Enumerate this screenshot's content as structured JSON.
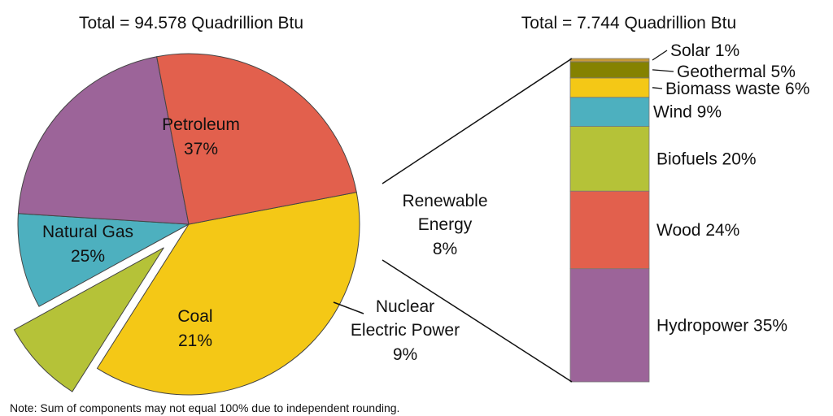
{
  "note": "Note: Sum of components may not equal 100% due to independent rounding.",
  "chart_data": [
    {
      "type": "pie",
      "title": "Total = 94.578 Quadrillion Btu",
      "slices": [
        {
          "name": "Petroleum",
          "value": 37,
          "label": "37%",
          "color": "#f4c816"
        },
        {
          "name": "Renewable Energy",
          "value": 8,
          "label": "8%",
          "color": "#b5c238",
          "exploded": true
        },
        {
          "name": "Nuclear Electric Power",
          "value": 9,
          "label": "9%",
          "color": "#4db0bf"
        },
        {
          "name": "Coal",
          "value": 21,
          "label": "21%",
          "color": "#9c6499"
        },
        {
          "name": "Natural Gas",
          "value": 25,
          "label": "25%",
          "color": "#e2604d"
        }
      ],
      "text": {
        "petroleum": "Petroleum",
        "petroleum_pct": "37%",
        "natural_gas": "Natural Gas",
        "natural_gas_pct": "25%",
        "coal": "Coal",
        "coal_pct": "21%",
        "renewable_1": "Renewable",
        "renewable_2": "Energy",
        "renewable_pct": "8%",
        "nuclear_1": "Nuclear",
        "nuclear_2": "Electric Power",
        "nuclear_pct": "9%"
      }
    },
    {
      "type": "bar",
      "stacked": true,
      "title": "Total = 7.744 Quadrillion Btu",
      "segments": [
        {
          "name": "Hydropower",
          "value": 35,
          "label": "Hydropower 35%",
          "color": "#9c6499"
        },
        {
          "name": "Wood",
          "value": 24,
          "label": "Wood 24%",
          "color": "#e2604d"
        },
        {
          "name": "Biofuels",
          "value": 20,
          "label": "Biofuels 20%",
          "color": "#b5c238"
        },
        {
          "name": "Wind",
          "value": 9,
          "label": "Wind 9%",
          "color": "#4db0bf"
        },
        {
          "name": "Biomass waste",
          "value": 6,
          "label": "Biomass waste 6%",
          "color": "#f4c816"
        },
        {
          "name": "Geothermal",
          "value": 5,
          "label": "Geothermal 5%",
          "color": "#858200"
        },
        {
          "name": "Solar",
          "value": 1,
          "label": "Solar 1%",
          "color": "#c89a38"
        }
      ]
    }
  ]
}
